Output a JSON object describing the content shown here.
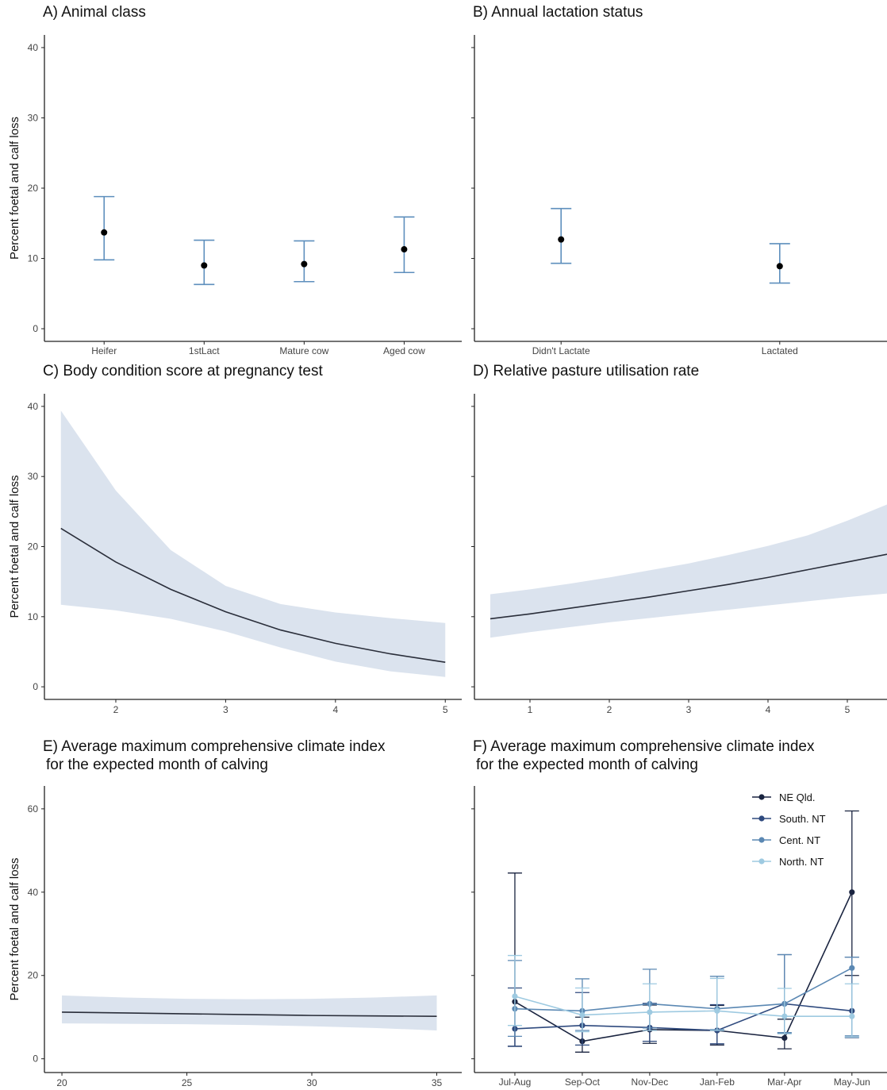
{
  "figure": {
    "y_axis_label": "Percent foetal and calf loss"
  },
  "colors": {
    "errorbar": "#5e8fbd",
    "ribbon": "#dbe3ee",
    "line": "#2a2e3a",
    "point": "#000000"
  },
  "chart_data": [
    {
      "id": "A",
      "type": "scatter",
      "title": "A) Animal class",
      "xlabel": "",
      "ylabel": "Percent foetal and calf loss",
      "categories": [
        "Heifer",
        "1stLact",
        "Mature cow",
        "Aged cow"
      ],
      "estimate": [
        13.7,
        9.0,
        9.2,
        11.3
      ],
      "lower": [
        9.8,
        6.3,
        6.7,
        8.0
      ],
      "upper": [
        18.8,
        12.6,
        12.5,
        15.9
      ],
      "ylim": [
        0,
        40
      ],
      "yticks": [
        0,
        10,
        20,
        30,
        40
      ]
    },
    {
      "id": "B",
      "type": "scatter",
      "title": "B) Annual lactation status",
      "categories": [
        "Didn't Lactate",
        "Lactated"
      ],
      "estimate": [
        12.7,
        8.9
      ],
      "lower": [
        9.3,
        6.5
      ],
      "upper": [
        17.1,
        12.1
      ],
      "ylim": [
        0,
        40
      ],
      "yticks": [
        0,
        10,
        20,
        30,
        40
      ]
    },
    {
      "id": "C",
      "type": "line",
      "title": "C) Body condition score at pregnancy test",
      "ylabel": "Percent foetal and calf loss",
      "x": [
        1.5,
        2.0,
        2.5,
        3.0,
        3.5,
        4.0,
        4.5,
        5.0
      ],
      "y": [
        22.6,
        17.8,
        13.9,
        10.7,
        8.1,
        6.2,
        4.7,
        3.5
      ],
      "lower": [
        11.7,
        10.9,
        9.7,
        7.9,
        5.6,
        3.6,
        2.2,
        1.4
      ],
      "upper": [
        39.4,
        28.0,
        19.5,
        14.4,
        11.8,
        10.6,
        9.8,
        9.1
      ],
      "xlim": [
        1.35,
        5.15
      ],
      "xticks": [
        2,
        3,
        4,
        5
      ],
      "ylim": [
        0,
        40
      ],
      "yticks": [
        0,
        10,
        20,
        30,
        40
      ]
    },
    {
      "id": "D",
      "type": "line",
      "title": "D) Relative pasture utilisation rate",
      "x": [
        0.5,
        1.0,
        1.5,
        2.0,
        2.5,
        3.0,
        3.5,
        4.0,
        4.5,
        5.0,
        5.5
      ],
      "y": [
        9.7,
        10.4,
        11.2,
        12.0,
        12.8,
        13.7,
        14.6,
        15.6,
        16.7,
        17.8,
        18.9
      ],
      "lower": [
        7.0,
        7.8,
        8.5,
        9.2,
        9.8,
        10.4,
        11.0,
        11.6,
        12.2,
        12.8,
        13.3
      ],
      "upper": [
        13.2,
        13.9,
        14.7,
        15.6,
        16.6,
        17.6,
        18.8,
        20.1,
        21.6,
        23.7,
        26.0
      ],
      "xlim": [
        0.3,
        5.5
      ],
      "xticks": [
        1,
        2,
        3,
        4,
        5
      ],
      "ylim": [
        0,
        40
      ],
      "yticks": [
        0,
        10,
        20,
        30,
        40
      ]
    },
    {
      "id": "E",
      "type": "line",
      "title": "E) Average maximum comprehensive climate index",
      "subtitle": "for the expected month of calving",
      "ylabel": "Percent foetal and calf loss",
      "x": [
        20,
        22.5,
        25,
        27.5,
        30,
        32.5,
        35
      ],
      "y": [
        11.2,
        11.0,
        10.8,
        10.6,
        10.4,
        10.3,
        10.2
      ],
      "lower": [
        8.5,
        8.4,
        8.3,
        8.1,
        7.8,
        7.4,
        6.8
      ],
      "upper": [
        15.2,
        14.7,
        14.4,
        14.3,
        14.4,
        14.7,
        15.2
      ],
      "xlim": [
        19.3,
        36.0
      ],
      "xticks": [
        20,
        25,
        30,
        35
      ],
      "ylim": [
        0,
        60
      ],
      "yticks": [
        0,
        20,
        40,
        60
      ]
    },
    {
      "id": "F",
      "type": "line",
      "title": "F) Average maximum comprehensive climate index",
      "subtitle": "for the expected month of calving",
      "categories": [
        "Jul-Aug",
        "Sep-Oct",
        "Nov-Dec",
        "Jan-Feb",
        "Mar-Apr",
        "May-Jun"
      ],
      "ylim": [
        0,
        60
      ],
      "yticks": [
        0,
        20,
        40,
        60
      ],
      "legend_position": "top-right",
      "series": [
        {
          "name": "NE Qld.",
          "color": "#1a2440",
          "values": [
            13.7,
            4.2,
            7.0,
            6.8,
            5.0,
            40.0
          ],
          "lower": [
            3.0,
            1.6,
            3.7,
            3.3,
            2.4,
            20.0
          ],
          "upper": [
            44.6,
            10.0,
            12.9,
            12.8,
            9.5,
            59.5
          ]
        },
        {
          "name": "South. NT",
          "color": "#2f4a7e",
          "values": [
            7.2,
            8.0,
            7.5,
            6.8,
            13.2,
            11.5
          ],
          "lower": [
            3.0,
            3.3,
            4.2,
            3.6,
            6.2,
            5.1
          ],
          "upper": [
            17.0,
            15.9,
            13.3,
            13.0,
            25.0,
            24.4
          ]
        },
        {
          "name": "Cent. NT",
          "color": "#5b88b3",
          "values": [
            12.0,
            11.5,
            13.2,
            12.0,
            13.2,
            21.8
          ],
          "lower": [
            5.4,
            6.8,
            7.4,
            7.0,
            6.3,
            5.5
          ],
          "upper": [
            23.6,
            19.2,
            21.5,
            19.8,
            25.0,
            24.4
          ]
        },
        {
          "name": "North. NT",
          "color": "#9ecae1",
          "values": [
            15.0,
            10.5,
            11.2,
            11.5,
            10.2,
            10.2
          ],
          "lower": [
            8.0,
            6.5,
            6.8,
            6.8,
            6.0,
            5.2
          ],
          "upper": [
            24.8,
            17.0,
            18.0,
            19.3,
            16.9,
            18.0
          ]
        }
      ]
    }
  ]
}
